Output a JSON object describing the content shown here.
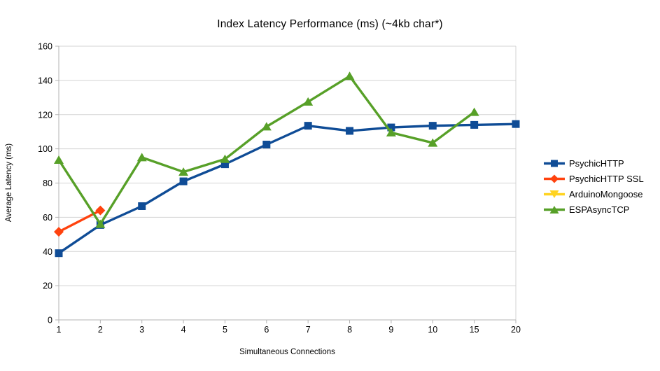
{
  "title": "Index Latency Performance (ms) (~4kb char*)",
  "chart_data": {
    "type": "line",
    "title": "Index Latency Performance (ms) (~4kb char*)",
    "xlabel": "Simultaneous Connections",
    "ylabel": "Average Latency (ms)",
    "x_categories": [
      "1",
      "2",
      "3",
      "4",
      "5",
      "6",
      "7",
      "8",
      "9",
      "10",
      "15",
      "20"
    ],
    "y_ticks": [
      0,
      20,
      40,
      60,
      80,
      100,
      120,
      140,
      160
    ],
    "ylim": [
      0,
      160
    ],
    "grid": "horizontal",
    "legend_position": "right",
    "series": [
      {
        "name": "PsychicHTTP",
        "color": "#0F4C96",
        "marker": "square",
        "values": [
          39,
          55.5,
          66.5,
          81,
          91,
          102.5,
          113.5,
          110.5,
          112.5,
          113.5,
          114,
          114.5
        ]
      },
      {
        "name": "PsychicHTTP SSL",
        "color": "#FF420E",
        "marker": "diamond",
        "values": [
          51.5,
          64,
          null,
          null,
          null,
          null,
          null,
          null,
          null,
          null,
          null,
          null
        ]
      },
      {
        "name": "ArduinoMongoose",
        "color": "#FFD320",
        "marker": "triangle-down",
        "values": [
          null,
          null,
          null,
          null,
          null,
          null,
          null,
          null,
          null,
          null,
          null,
          null
        ]
      },
      {
        "name": "ESPAsyncTCP",
        "color": "#57A028",
        "marker": "triangle-up",
        "values": [
          93.5,
          56,
          95,
          86.5,
          94,
          113,
          127.5,
          142.5,
          109.5,
          103.5,
          121.5,
          null
        ]
      }
    ],
    "colors": {
      "grid": "#d3d3d3",
      "axis": "#b3b3b3",
      "text": "#000000"
    }
  }
}
